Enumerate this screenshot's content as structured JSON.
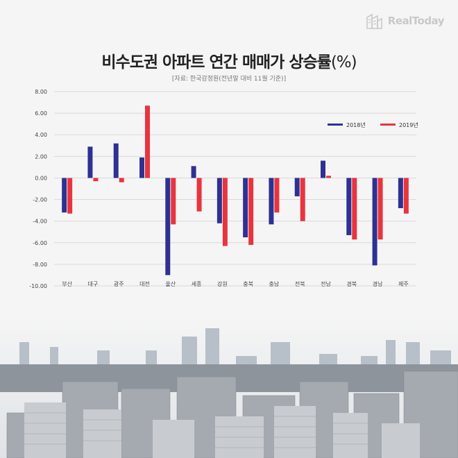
{
  "brand": {
    "name": "RealToday"
  },
  "header": {
    "title": "비수도권 아파트 연간 매매가 상승률",
    "title_unit": "(%)",
    "source": "[자료: 한국감정원(전년말 대비 11월 기준)]"
  },
  "colors": {
    "series_2018": "#2e3192",
    "series_2019": "#e8343f",
    "grid": "#d9d9d9"
  },
  "chart_data": {
    "type": "bar",
    "categories": [
      "부산",
      "대구",
      "광주",
      "대전",
      "울산",
      "세종",
      "강원",
      "충북",
      "충남",
      "전북",
      "전남",
      "경북",
      "경남",
      "제주"
    ],
    "series": [
      {
        "name": "2018년",
        "values": [
          -3.2,
          2.9,
          3.2,
          1.9,
          -9.0,
          1.1,
          -4.2,
          -5.5,
          -4.3,
          -1.7,
          1.6,
          -5.3,
          -8.1,
          -2.8
        ]
      },
      {
        "name": "2019년",
        "values": [
          -3.3,
          -0.3,
          -0.4,
          6.7,
          -4.3,
          -3.1,
          -6.3,
          -6.2,
          -3.2,
          -4.0,
          0.2,
          -5.7,
          -5.7,
          -3.3
        ]
      }
    ],
    "yticks": [
      "8.00",
      "6.00",
      "4.00",
      "2.00",
      "0.00",
      "-2.00",
      "-4.00",
      "-6.00",
      "-8.00",
      "-10.00"
    ],
    "ylim": [
      -10,
      8
    ],
    "legend_position": "top-right",
    "grid": true
  }
}
